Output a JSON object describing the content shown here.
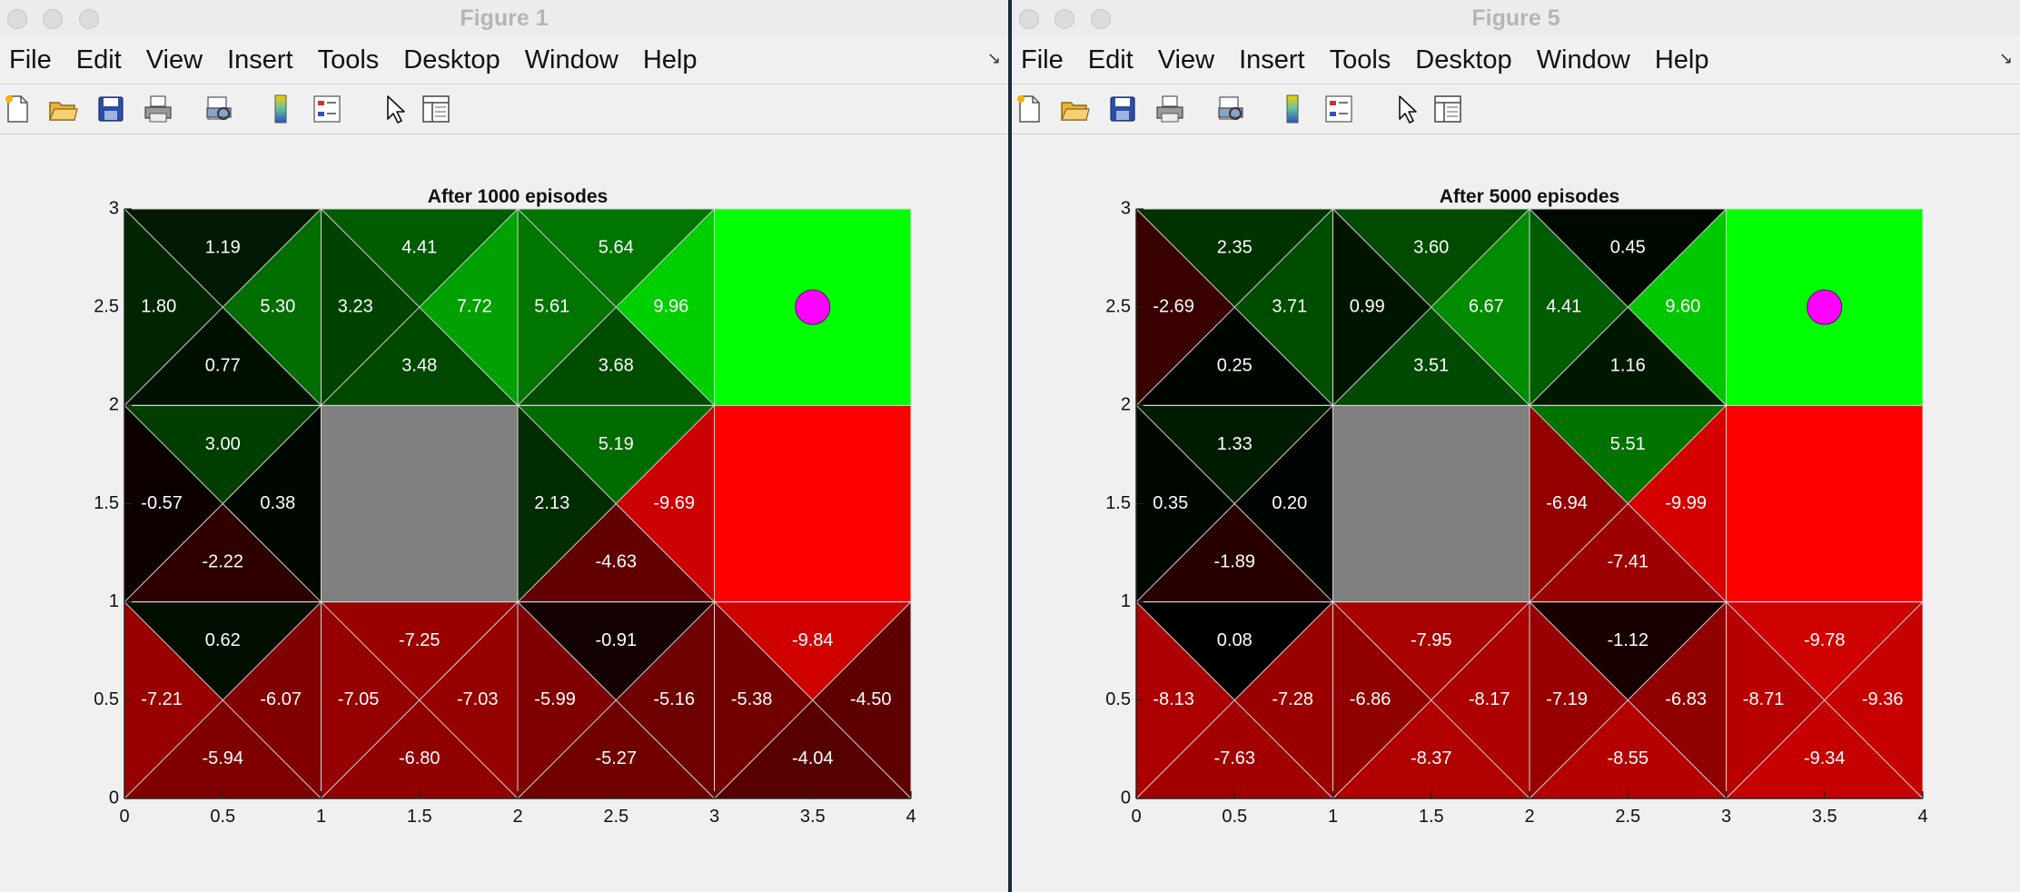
{
  "menu": [
    "File",
    "Edit",
    "View",
    "Insert",
    "Tools",
    "Desktop",
    "Window",
    "Help"
  ],
  "toolbar_icons": [
    "new-file-icon",
    "open-folder-icon",
    "save-icon",
    "print-icon",
    "print-preview-icon",
    "colorbar-icon",
    "legend-icon",
    "pointer-icon",
    "property-inspector-icon"
  ],
  "colors": {
    "goal": "#00ff00",
    "trap": "#ff0000",
    "wall": "#808080",
    "agent": "#ff00ff",
    "positive": "#00d000",
    "negative": "#d40000",
    "neutral": "#000000"
  },
  "figures": [
    {
      "window_title": "Figure 1",
      "chart_data": {
        "type": "heatmap",
        "title": "After 1000 episodes",
        "xlim": [
          0,
          4
        ],
        "ylim": [
          0,
          3
        ],
        "xticks": [
          "0",
          "0.5",
          "1",
          "1.5",
          "2",
          "2.5",
          "3",
          "3.5",
          "4"
        ],
        "yticks": [
          "0",
          "0.5",
          "1",
          "1.5",
          "2",
          "2.5",
          "3"
        ],
        "grid_cols": 4,
        "grid_rows": 3,
        "goal_cell": [
          3,
          2
        ],
        "trap_cell": [
          3,
          1
        ],
        "wall_cell": [
          1,
          1
        ],
        "agent_pos": [
          3.5,
          2.5
        ],
        "cells": [
          {
            "col": 0,
            "row": 2,
            "up": "1.19",
            "left": "1.80",
            "right": "5.30",
            "down": "0.77"
          },
          {
            "col": 1,
            "row": 2,
            "up": "4.41",
            "left": "3.23",
            "right": "7.72",
            "down": "3.48"
          },
          {
            "col": 2,
            "row": 2,
            "up": "5.64",
            "left": "5.61",
            "right": "9.96",
            "down": "3.68"
          },
          {
            "col": 0,
            "row": 1,
            "up": "3.00",
            "left": "-0.57",
            "right": "0.38",
            "down": "-2.22"
          },
          {
            "col": 2,
            "row": 1,
            "up": "5.19",
            "left": "2.13",
            "right": "-9.69",
            "down": "-4.63"
          },
          {
            "col": 0,
            "row": 0,
            "up": "0.62",
            "left": "-7.21",
            "right": "-6.07",
            "down": "-5.94"
          },
          {
            "col": 1,
            "row": 0,
            "up": "-7.25",
            "left": "-7.05",
            "right": "-7.03",
            "down": "-6.80"
          },
          {
            "col": 2,
            "row": 0,
            "up": "-0.91",
            "left": "-5.99",
            "right": "-5.16",
            "down": "-5.27"
          },
          {
            "col": 3,
            "row": 0,
            "up": "-9.84",
            "left": "-5.38",
            "right": "-4.50",
            "down": "-4.04"
          }
        ]
      }
    },
    {
      "window_title": "Figure 5",
      "chart_data": {
        "type": "heatmap",
        "title": "After 5000 episodes",
        "xlim": [
          0,
          4
        ],
        "ylim": [
          0,
          3
        ],
        "xticks": [
          "0",
          "0.5",
          "1",
          "1.5",
          "2",
          "2.5",
          "3",
          "3.5",
          "4"
        ],
        "yticks": [
          "0",
          "0.5",
          "1",
          "1.5",
          "2",
          "2.5",
          "3"
        ],
        "grid_cols": 4,
        "grid_rows": 3,
        "goal_cell": [
          3,
          2
        ],
        "trap_cell": [
          3,
          1
        ],
        "wall_cell": [
          1,
          1
        ],
        "agent_pos": [
          3.5,
          2.5
        ],
        "cells": [
          {
            "col": 0,
            "row": 2,
            "up": "2.35",
            "left": "-2.69",
            "right": "3.71",
            "down": "0.25"
          },
          {
            "col": 1,
            "row": 2,
            "up": "3.60",
            "left": "0.99",
            "right": "6.67",
            "down": "3.51"
          },
          {
            "col": 2,
            "row": 2,
            "up": "0.45",
            "left": "4.41",
            "right": "9.60",
            "down": "1.16"
          },
          {
            "col": 0,
            "row": 1,
            "up": "1.33",
            "left": "0.35",
            "right": "0.20",
            "down": "-1.89"
          },
          {
            "col": 2,
            "row": 1,
            "up": "5.51",
            "left": "-6.94",
            "right": "-9.99",
            "down": "-7.41"
          },
          {
            "col": 0,
            "row": 0,
            "up": "0.08",
            "left": "-8.13",
            "right": "-7.28",
            "down": "-7.63"
          },
          {
            "col": 1,
            "row": 0,
            "up": "-7.95",
            "left": "-6.86",
            "right": "-8.17",
            "down": "-8.37"
          },
          {
            "col": 2,
            "row": 0,
            "up": "-1.12",
            "left": "-7.19",
            "right": "-6.83",
            "down": "-8.55"
          },
          {
            "col": 3,
            "row": 0,
            "up": "-9.78",
            "left": "-8.71",
            "right": "-9.36",
            "down": "-9.34"
          }
        ]
      }
    }
  ]
}
